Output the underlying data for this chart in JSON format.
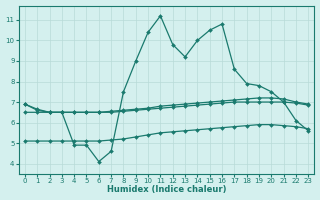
{
  "x": [
    0,
    1,
    2,
    3,
    4,
    5,
    6,
    7,
    8,
    9,
    10,
    11,
    12,
    13,
    14,
    15,
    16,
    17,
    18,
    19,
    20,
    21,
    22,
    23
  ],
  "line_main": [
    6.9,
    6.6,
    6.5,
    6.5,
    4.9,
    4.9,
    4.1,
    4.6,
    7.5,
    9.0,
    10.4,
    11.2,
    9.8,
    9.2,
    10.0,
    10.5,
    10.8,
    8.6,
    7.9,
    7.8,
    7.5,
    7.0,
    6.1,
    5.6
  ],
  "line_top_flat": [
    6.9,
    6.65,
    6.5,
    6.5,
    6.5,
    6.5,
    6.5,
    6.55,
    6.6,
    6.65,
    6.7,
    6.8,
    6.85,
    6.9,
    6.95,
    7.0,
    7.05,
    7.1,
    7.15,
    7.2,
    7.2,
    7.15,
    7.0,
    6.9
  ],
  "line_mid_flat": [
    6.5,
    6.5,
    6.5,
    6.5,
    6.5,
    6.5,
    6.5,
    6.5,
    6.55,
    6.6,
    6.65,
    6.7,
    6.75,
    6.8,
    6.85,
    6.9,
    6.95,
    7.0,
    7.0,
    7.0,
    7.0,
    7.0,
    6.95,
    6.85
  ],
  "line_bot_flat": [
    5.1,
    5.1,
    5.1,
    5.1,
    5.1,
    5.1,
    5.1,
    5.15,
    5.2,
    5.3,
    5.4,
    5.5,
    5.55,
    5.6,
    5.65,
    5.7,
    5.75,
    5.8,
    5.85,
    5.9,
    5.9,
    5.85,
    5.8,
    5.7
  ],
  "color": "#1a7a6e",
  "bg_color": "#d4f0ee",
  "grid_color": "#b8dbd8",
  "xlabel": "Humidex (Indice chaleur)",
  "ylim": [
    3.5,
    11.7
  ],
  "xlim": [
    -0.5,
    23.5
  ],
  "yticks": [
    4,
    5,
    6,
    7,
    8,
    9,
    10,
    11
  ],
  "xticks": [
    0,
    1,
    2,
    3,
    4,
    5,
    6,
    7,
    8,
    9,
    10,
    11,
    12,
    13,
    14,
    15,
    16,
    17,
    18,
    19,
    20,
    21,
    22,
    23
  ]
}
